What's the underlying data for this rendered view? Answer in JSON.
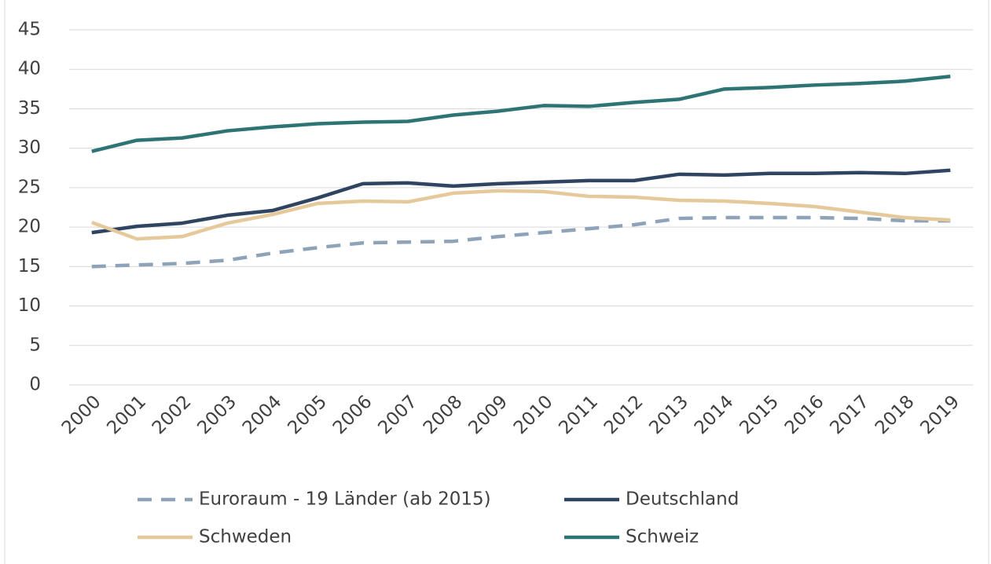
{
  "chart_data": {
    "type": "line",
    "categories": [
      "2000",
      "2001",
      "2002",
      "2003",
      "2004",
      "2005",
      "2006",
      "2007",
      "2008",
      "2009",
      "2010",
      "2011",
      "2012",
      "2013",
      "2014",
      "2015",
      "2016",
      "2017",
      "2018",
      "2019"
    ],
    "series": [
      {
        "name": "Euroraum - 19 Länder (ab 2015)",
        "color": "#8fa3b8",
        "dashed": true,
        "values": [
          15.0,
          15.2,
          15.4,
          15.8,
          16.7,
          17.4,
          18.0,
          18.1,
          18.2,
          18.8,
          19.3,
          19.8,
          20.3,
          21.1,
          21.2,
          21.2,
          21.2,
          21.1,
          20.8,
          20.8
        ]
      },
      {
        "name": "Deutschland",
        "color": "#2e4460",
        "dashed": false,
        "values": [
          19.3,
          20.1,
          20.5,
          21.5,
          22.1,
          23.7,
          25.5,
          25.6,
          25.2,
          25.5,
          25.7,
          25.9,
          25.9,
          26.7,
          26.6,
          26.8,
          26.8,
          26.9,
          26.8,
          27.2
        ]
      },
      {
        "name": "Schweden",
        "color": "#e6c99a",
        "dashed": false,
        "values": [
          20.6,
          18.5,
          18.8,
          20.5,
          21.6,
          23.0,
          23.3,
          23.2,
          24.3,
          24.6,
          24.5,
          23.9,
          23.8,
          23.4,
          23.3,
          23.0,
          22.6,
          21.9,
          21.2,
          20.9
        ]
      },
      {
        "name": "Schweiz",
        "color": "#2e7474",
        "dashed": false,
        "values": [
          29.6,
          31.0,
          31.3,
          32.2,
          32.7,
          33.1,
          33.3,
          33.4,
          34.2,
          34.7,
          35.4,
          35.3,
          35.8,
          36.2,
          37.5,
          37.7,
          38.0,
          38.2,
          38.5,
          39.1
        ]
      }
    ],
    "ylim": [
      0,
      45
    ],
    "yticks": [
      0,
      5,
      10,
      15,
      20,
      25,
      30,
      35,
      40,
      45
    ],
    "grid": true
  }
}
